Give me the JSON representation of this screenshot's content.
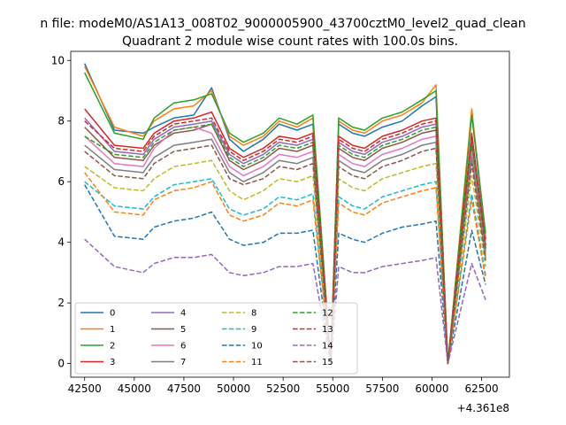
{
  "header": {
    "suptitle": "n file: modeM0/AS1A13_008T02_9000005900_43700cztM0_level2_quad_clean"
  },
  "chart_data": {
    "type": "line",
    "title": "Quadrant 2 module wise count rates with 100.0s bins.",
    "xlabel": "",
    "ylabel": "",
    "x_offset_label": "+4.361e8",
    "xlim": [
      41800,
      63900
    ],
    "ylim": [
      -0.45,
      10.3
    ],
    "xticks": [
      42500,
      45000,
      47500,
      50000,
      52500,
      55000,
      57500,
      60000,
      62500
    ],
    "xtick_labels": [
      "42500",
      "45000",
      "47500",
      "50000",
      "52500",
      "55000",
      "57500",
      "60000",
      "62500"
    ],
    "yticks": [
      0,
      2,
      4,
      6,
      8,
      10
    ],
    "ytick_labels": [
      "0",
      "2",
      "4",
      "6",
      "8",
      "10"
    ],
    "grid": false,
    "legend_placement": "lower-left",
    "legend_columns": 4,
    "x": [
      42500,
      44000,
      45450,
      46000,
      47000,
      48000,
      48900,
      49800,
      50500,
      51500,
      52300,
      53200,
      54000,
      54900,
      55300,
      56000,
      56600,
      57500,
      58500,
      59500,
      60200,
      60800,
      62000,
      62700
    ],
    "series": [
      {
        "name": "0",
        "color": "#1f77b4",
        "style": "solid",
        "values": [
          9.9,
          7.7,
          7.6,
          7.8,
          8.1,
          8.2,
          9.1,
          7.4,
          7.0,
          7.4,
          7.9,
          7.7,
          7.9,
          0.0,
          7.9,
          7.6,
          7.5,
          7.8,
          8.0,
          8.5,
          8.8,
          0.0,
          8.3,
          4.1
        ]
      },
      {
        "name": "1",
        "color": "#ff7f0e",
        "style": "solid",
        "values": [
          9.8,
          7.8,
          7.5,
          8.0,
          8.4,
          8.5,
          9.0,
          7.5,
          7.2,
          7.5,
          8.0,
          7.8,
          8.1,
          0.0,
          8.0,
          7.7,
          7.6,
          8.0,
          8.2,
          8.6,
          9.2,
          0.0,
          8.4,
          4.2
        ]
      },
      {
        "name": "2",
        "color": "#2ca02c",
        "style": "solid",
        "values": [
          9.6,
          7.6,
          7.4,
          8.1,
          8.6,
          8.7,
          8.9,
          7.6,
          7.3,
          7.6,
          8.1,
          7.9,
          8.2,
          0.0,
          8.1,
          7.8,
          7.7,
          8.1,
          8.3,
          8.7,
          9.0,
          0.0,
          8.2,
          4.3
        ]
      },
      {
        "name": "3",
        "color": "#d62728",
        "style": "solid",
        "values": [
          8.4,
          7.2,
          7.1,
          7.6,
          8.0,
          8.1,
          8.3,
          7.1,
          6.8,
          7.1,
          7.5,
          7.4,
          7.6,
          0.0,
          7.5,
          7.2,
          7.1,
          7.5,
          7.7,
          8.0,
          8.1,
          0.0,
          7.6,
          3.9
        ]
      },
      {
        "name": "4",
        "color": "#9467bd",
        "style": "solid",
        "values": [
          8.1,
          7.0,
          6.9,
          7.4,
          7.8,
          7.9,
          8.0,
          6.9,
          6.6,
          6.9,
          7.3,
          7.2,
          7.4,
          0.0,
          7.3,
          7.0,
          6.9,
          7.3,
          7.5,
          7.8,
          7.9,
          0.0,
          7.4,
          3.8
        ]
      },
      {
        "name": "5",
        "color": "#8c564b",
        "style": "solid",
        "values": [
          7.8,
          6.8,
          6.7,
          7.2,
          7.6,
          7.7,
          7.9,
          6.7,
          6.4,
          6.7,
          7.1,
          7.0,
          7.2,
          0.0,
          7.1,
          6.8,
          6.7,
          7.1,
          7.3,
          7.6,
          7.7,
          0.0,
          7.2,
          3.7
        ]
      },
      {
        "name": "6",
        "color": "#e377c2",
        "style": "solid",
        "values": [
          7.5,
          6.6,
          6.5,
          7.1,
          7.7,
          7.8,
          7.6,
          6.5,
          6.2,
          6.5,
          6.9,
          6.8,
          7.0,
          0.0,
          6.9,
          6.6,
          6.5,
          6.9,
          7.1,
          7.4,
          7.5,
          0.0,
          7.0,
          3.6
        ]
      },
      {
        "name": "7",
        "color": "#7f7f7f",
        "style": "solid",
        "values": [
          7.2,
          6.4,
          6.3,
          6.8,
          7.2,
          7.3,
          7.4,
          6.3,
          6.0,
          6.3,
          6.7,
          6.6,
          6.8,
          0.0,
          6.7,
          6.4,
          6.3,
          6.7,
          6.9,
          7.2,
          7.3,
          0.0,
          6.8,
          3.5
        ]
      },
      {
        "name": "8",
        "color": "#bcbd22",
        "style": "dashed",
        "values": [
          6.5,
          5.8,
          5.7,
          6.1,
          6.5,
          6.6,
          6.7,
          5.7,
          5.4,
          5.7,
          6.1,
          6.0,
          6.2,
          0.0,
          6.1,
          5.8,
          5.7,
          6.1,
          6.3,
          6.5,
          6.6,
          0.0,
          6.2,
          3.2
        ]
      },
      {
        "name": "9",
        "color": "#17becf",
        "style": "dashed",
        "values": [
          6.0,
          5.2,
          5.1,
          5.5,
          5.9,
          6.0,
          6.1,
          5.1,
          4.9,
          5.1,
          5.5,
          5.4,
          5.6,
          0.0,
          5.5,
          5.2,
          5.1,
          5.5,
          5.7,
          5.9,
          6.0,
          0.0,
          5.6,
          2.9
        ]
      },
      {
        "name": "10",
        "color": "#1f77b4",
        "style": "dashed",
        "values": [
          5.9,
          4.2,
          4.1,
          4.5,
          4.7,
          4.8,
          5.0,
          4.1,
          3.9,
          4.0,
          4.3,
          4.3,
          4.4,
          0.0,
          4.3,
          4.1,
          4.0,
          4.3,
          4.5,
          4.6,
          4.7,
          0.0,
          4.4,
          2.6
        ]
      },
      {
        "name": "11",
        "color": "#ff7f0e",
        "style": "dashed",
        "values": [
          6.3,
          5.0,
          4.9,
          5.4,
          5.7,
          5.8,
          6.0,
          4.9,
          4.7,
          4.9,
          5.3,
          5.2,
          5.4,
          0.0,
          5.3,
          5.0,
          4.9,
          5.3,
          5.5,
          5.7,
          5.8,
          0.0,
          5.4,
          2.8
        ]
      },
      {
        "name": "12",
        "color": "#2ca02c",
        "style": "dashed",
        "values": [
          7.5,
          6.9,
          6.8,
          7.3,
          7.7,
          7.8,
          7.9,
          6.8,
          6.5,
          6.8,
          7.2,
          7.1,
          7.3,
          0.0,
          7.2,
          6.9,
          6.8,
          7.2,
          7.4,
          7.7,
          7.8,
          0.0,
          7.3,
          3.8
        ]
      },
      {
        "name": "13",
        "color": "#d62728",
        "style": "dashed",
        "values": [
          8.0,
          7.1,
          7.0,
          7.5,
          7.9,
          8.0,
          8.1,
          7.0,
          6.7,
          7.0,
          7.4,
          7.3,
          7.5,
          0.0,
          7.4,
          7.1,
          7.0,
          7.4,
          7.6,
          7.9,
          8.0,
          0.0,
          7.5,
          3.9
        ]
      },
      {
        "name": "14",
        "color": "#9467bd",
        "style": "dashed",
        "values": [
          4.1,
          3.2,
          3.0,
          3.3,
          3.5,
          3.5,
          3.6,
          3.0,
          2.9,
          3.0,
          3.2,
          3.2,
          3.3,
          0.0,
          3.2,
          3.0,
          3.0,
          3.2,
          3.3,
          3.4,
          3.5,
          0.0,
          3.3,
          2.1
        ]
      },
      {
        "name": "15",
        "color": "#8c564b",
        "style": "dashed",
        "values": [
          7.0,
          6.2,
          6.1,
          6.6,
          7.0,
          7.1,
          7.2,
          6.1,
          5.9,
          6.1,
          6.5,
          6.4,
          6.6,
          0.0,
          6.5,
          6.2,
          6.1,
          6.5,
          6.7,
          7.0,
          7.1,
          0.0,
          6.6,
          3.4
        ]
      }
    ]
  }
}
